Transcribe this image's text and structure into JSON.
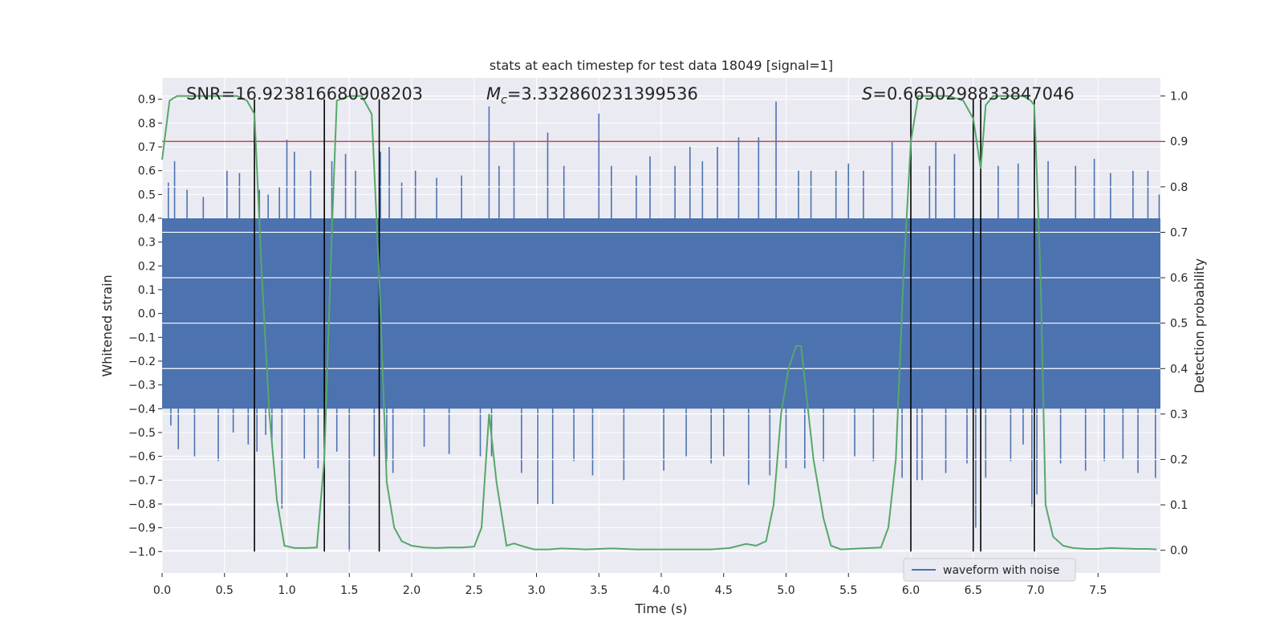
{
  "chart_data": {
    "type": "line",
    "title": "stats at each timestep for test data 18049 [signal=1]",
    "xlabel": "Time (s)",
    "ylabel_left": "Whitened strain",
    "ylabel_right": "Detection probability",
    "xlim": [
      0,
      8
    ],
    "ylim_left": [
      -1.09,
      0.99
    ],
    "ylim_right": [
      -0.05,
      1.04
    ],
    "x_ticks": [
      0.0,
      0.5,
      1.0,
      1.5,
      2.0,
      2.5,
      3.0,
      3.5,
      4.0,
      4.5,
      5.0,
      5.5,
      6.0,
      6.5,
      7.0,
      7.5
    ],
    "x_tick_labels": [
      "0.0",
      "0.5",
      "1.0",
      "1.5",
      "2.0",
      "2.5",
      "3.0",
      "3.5",
      "4.0",
      "4.5",
      "5.0",
      "5.5",
      "6.0",
      "6.5",
      "7.0",
      "7.5"
    ],
    "y_left_ticks": [
      0.9,
      0.8,
      0.7,
      0.6,
      0.5,
      0.4,
      0.3,
      0.2,
      0.1,
      0.0,
      -0.1,
      -0.2,
      -0.3,
      -0.4,
      -0.5,
      -0.6,
      -0.7,
      -0.8,
      -0.9,
      -1.0
    ],
    "y_left_tick_labels": [
      "0.9",
      "0.8",
      "0.7",
      "0.6",
      "0.5",
      "0.4",
      "0.3",
      "0.2",
      "0.1",
      "0.0",
      "−0.1",
      "−0.2",
      "−0.3",
      "−0.4",
      "−0.5",
      "−0.6",
      "−0.7",
      "−0.8",
      "−0.9",
      "−1.0"
    ],
    "y_right_ticks": [
      1.0,
      0.9,
      0.8,
      0.7,
      0.6,
      0.5,
      0.4,
      0.3,
      0.2,
      0.1,
      0.0
    ],
    "y_right_tick_labels": [
      "1.0",
      "0.9",
      "0.8",
      "0.7",
      "0.6",
      "0.5",
      "0.4",
      "0.3",
      "0.2",
      "0.1",
      "0.0"
    ],
    "annotations": {
      "snr": "SNR=16.923816680908203",
      "mc_symbol": "M",
      "mc_subscript": "c",
      "mc_value": "=3.332860231399536",
      "s_symbol": "S",
      "s_value": "=0.6650298833847046"
    },
    "threshold": {
      "value": 0.9,
      "axis": "right",
      "color": "#c44e52"
    },
    "vertical_lines": [
      0.74,
      1.3,
      1.74,
      6.0,
      6.5,
      6.56,
      6.99
    ],
    "vertical_line_range": [
      -1.0,
      0.9
    ],
    "legend": {
      "label": "waveform with noise",
      "placement": "lower-right"
    },
    "series": [
      {
        "name": "waveform with noise",
        "axis": "left",
        "color": "#4c72b0",
        "kind": "noise-envelope",
        "dense_band": [
          -0.4,
          0.4
        ],
        "spikes": [
          [
            0.05,
            0.55
          ],
          [
            0.07,
            -0.47
          ],
          [
            0.1,
            0.64
          ],
          [
            0.13,
            -0.57
          ],
          [
            0.2,
            0.52
          ],
          [
            0.26,
            -0.6
          ],
          [
            0.33,
            0.49
          ],
          [
            0.45,
            -0.62
          ],
          [
            0.52,
            0.6
          ],
          [
            0.57,
            -0.5
          ],
          [
            0.62,
            0.59
          ],
          [
            0.69,
            -0.55
          ],
          [
            0.76,
            -0.58
          ],
          [
            0.78,
            0.52
          ],
          [
            0.83,
            -0.51
          ],
          [
            0.85,
            0.5
          ],
          [
            0.88,
            -0.55
          ],
          [
            0.94,
            0.53
          ],
          [
            0.96,
            -0.82
          ],
          [
            1.0,
            0.73
          ],
          [
            1.06,
            0.68
          ],
          [
            1.14,
            -0.61
          ],
          [
            1.19,
            0.6
          ],
          [
            1.25,
            -0.65
          ],
          [
            1.36,
            0.64
          ],
          [
            1.4,
            -0.58
          ],
          [
            1.47,
            0.67
          ],
          [
            1.5,
            -1.0
          ],
          [
            1.55,
            0.6
          ],
          [
            1.7,
            -0.6
          ],
          [
            1.75,
            0.68
          ],
          [
            1.8,
            -0.62
          ],
          [
            1.82,
            0.7
          ],
          [
            1.85,
            -0.67
          ],
          [
            1.92,
            0.55
          ],
          [
            2.03,
            0.6
          ],
          [
            2.1,
            -0.56
          ],
          [
            2.2,
            0.57
          ],
          [
            2.3,
            -0.59
          ],
          [
            2.4,
            0.58
          ],
          [
            2.55,
            -0.6
          ],
          [
            2.62,
            0.87
          ],
          [
            2.64,
            -0.6
          ],
          [
            2.7,
            0.62
          ],
          [
            2.82,
            0.72
          ],
          [
            2.88,
            -0.67
          ],
          [
            3.01,
            -0.8
          ],
          [
            3.09,
            0.76
          ],
          [
            3.13,
            -0.8
          ],
          [
            3.22,
            0.62
          ],
          [
            3.3,
            -0.62
          ],
          [
            3.45,
            -0.68
          ],
          [
            3.5,
            0.84
          ],
          [
            3.6,
            0.62
          ],
          [
            3.7,
            -0.7
          ],
          [
            3.8,
            0.58
          ],
          [
            3.91,
            0.66
          ],
          [
            4.02,
            -0.66
          ],
          [
            4.11,
            0.62
          ],
          [
            4.2,
            -0.6
          ],
          [
            4.23,
            0.7
          ],
          [
            4.33,
            0.64
          ],
          [
            4.4,
            -0.63
          ],
          [
            4.45,
            0.7
          ],
          [
            4.5,
            -0.6
          ],
          [
            4.62,
            0.74
          ],
          [
            4.7,
            -0.72
          ],
          [
            4.78,
            0.74
          ],
          [
            4.87,
            -0.68
          ],
          [
            4.92,
            0.89
          ],
          [
            5.0,
            -0.65
          ],
          [
            5.1,
            0.6
          ],
          [
            5.15,
            -0.65
          ],
          [
            5.2,
            0.6
          ],
          [
            5.3,
            -0.62
          ],
          [
            5.4,
            0.6
          ],
          [
            5.5,
            0.63
          ],
          [
            5.55,
            -0.6
          ],
          [
            5.62,
            0.6
          ],
          [
            5.7,
            -0.62
          ],
          [
            5.85,
            0.72
          ],
          [
            5.93,
            -0.69
          ],
          [
            6.05,
            -0.7
          ],
          [
            6.09,
            -0.7
          ],
          [
            6.15,
            0.62
          ],
          [
            6.2,
            0.72
          ],
          [
            6.28,
            -0.67
          ],
          [
            6.35,
            0.67
          ],
          [
            6.45,
            -0.63
          ],
          [
            6.52,
            -0.9
          ],
          [
            6.6,
            -0.69
          ],
          [
            6.7,
            0.62
          ],
          [
            6.8,
            -0.62
          ],
          [
            6.86,
            0.63
          ],
          [
            6.9,
            -0.55
          ],
          [
            6.97,
            -0.81
          ],
          [
            7.01,
            -0.76
          ],
          [
            7.1,
            0.64
          ],
          [
            7.2,
            -0.63
          ],
          [
            7.32,
            0.62
          ],
          [
            7.4,
            -0.66
          ],
          [
            7.47,
            0.65
          ],
          [
            7.55,
            -0.62
          ],
          [
            7.6,
            0.59
          ],
          [
            7.7,
            -0.61
          ],
          [
            7.78,
            0.6
          ],
          [
            7.82,
            -0.67
          ],
          [
            7.9,
            0.6
          ],
          [
            7.96,
            -0.69
          ],
          [
            7.99,
            0.5
          ]
        ]
      },
      {
        "name": "detection probability",
        "axis": "right",
        "color": "#55a868",
        "x": [
          0.0,
          0.06,
          0.12,
          0.2,
          0.3,
          0.4,
          0.5,
          0.6,
          0.68,
          0.74,
          0.8,
          0.86,
          0.92,
          0.98,
          1.06,
          1.16,
          1.24,
          1.3,
          1.36,
          1.4,
          1.5,
          1.6,
          1.68,
          1.74,
          1.8,
          1.86,
          1.92,
          2.0,
          2.1,
          2.2,
          2.3,
          2.4,
          2.5,
          2.56,
          2.62,
          2.68,
          2.76,
          2.82,
          2.9,
          2.98,
          3.1,
          3.2,
          3.3,
          3.4,
          3.5,
          3.6,
          3.7,
          3.8,
          4.0,
          4.2,
          4.4,
          4.55,
          4.68,
          4.76,
          4.84,
          4.9,
          4.96,
          5.02,
          5.08,
          5.12,
          5.16,
          5.22,
          5.3,
          5.36,
          5.44,
          5.6,
          5.76,
          5.82,
          5.88,
          5.94,
          6.0,
          6.06,
          6.16,
          6.3,
          6.42,
          6.5,
          6.56,
          6.6,
          6.66,
          6.8,
          6.9,
          6.96,
          6.99,
          7.04,
          7.08,
          7.14,
          7.22,
          7.3,
          7.4,
          7.5,
          7.6,
          7.7,
          7.8,
          7.9,
          7.97
        ],
        "y": [
          0.86,
          0.99,
          1.0,
          1.0,
          1.0,
          1.0,
          1.0,
          1.0,
          0.99,
          0.96,
          0.6,
          0.3,
          0.11,
          0.01,
          0.005,
          0.005,
          0.006,
          0.2,
          0.7,
          0.99,
          1.0,
          1.0,
          0.96,
          0.6,
          0.15,
          0.05,
          0.02,
          0.01,
          0.006,
          0.005,
          0.006,
          0.006,
          0.008,
          0.05,
          0.3,
          0.15,
          0.01,
          0.015,
          0.008,
          0.002,
          0.002,
          0.004,
          0.003,
          0.002,
          0.003,
          0.004,
          0.003,
          0.002,
          0.002,
          0.002,
          0.002,
          0.005,
          0.014,
          0.01,
          0.02,
          0.1,
          0.3,
          0.4,
          0.45,
          0.45,
          0.35,
          0.2,
          0.07,
          0.01,
          0.002,
          0.004,
          0.006,
          0.05,
          0.2,
          0.6,
          0.9,
          1.0,
          1.0,
          1.0,
          0.99,
          0.95,
          0.84,
          0.98,
          1.0,
          1.0,
          1.0,
          0.99,
          0.98,
          0.6,
          0.1,
          0.03,
          0.01,
          0.005,
          0.003,
          0.003,
          0.005,
          0.004,
          0.003,
          0.003,
          0.002
        ]
      }
    ]
  }
}
